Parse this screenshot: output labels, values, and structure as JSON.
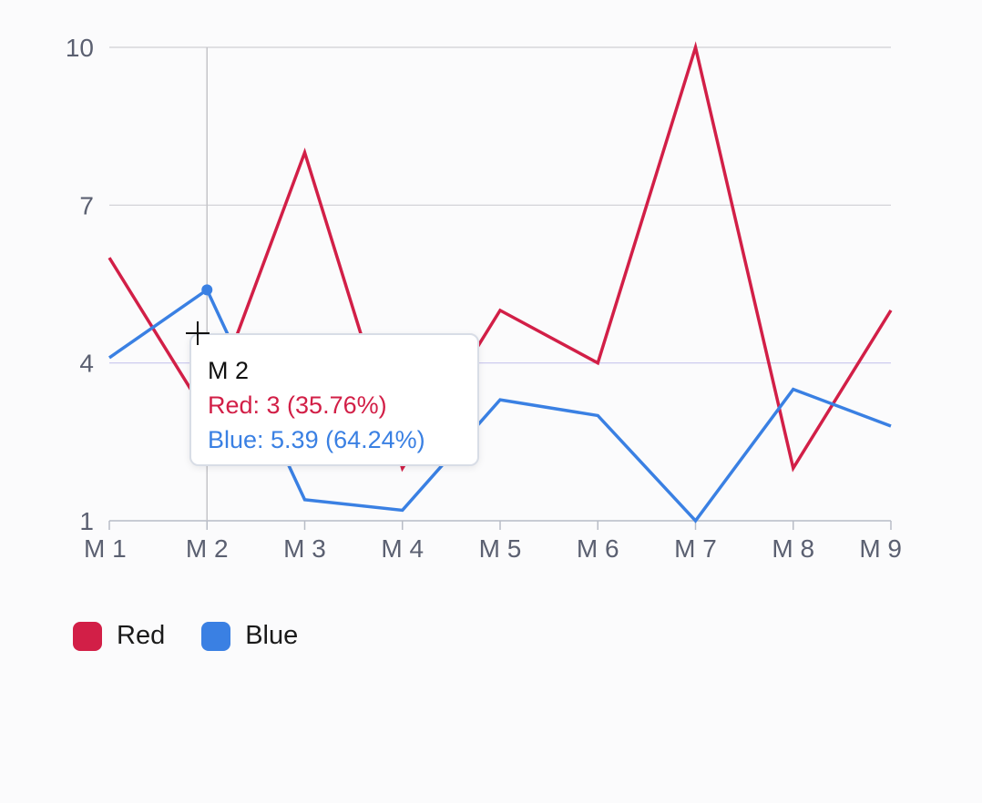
{
  "chart_data": {
    "type": "line",
    "categories": [
      "M 1",
      "M 2",
      "M 3",
      "M 4",
      "M 5",
      "M 6",
      "M 7",
      "M 8",
      "M 9"
    ],
    "series": [
      {
        "name": "Red",
        "color": "#d21f47",
        "values": [
          6,
          3,
          8,
          2,
          5,
          4,
          10,
          2,
          5
        ]
      },
      {
        "name": "Blue",
        "color": "#3a80e3",
        "values": [
          4.1,
          5.39,
          1.4,
          1.2,
          3.3,
          3.0,
          1.0,
          3.5,
          2.8
        ]
      }
    ],
    "ylim": [
      1,
      10
    ],
    "yticks": [
      "10",
      "7",
      "4",
      "1"
    ],
    "ytick_values": [
      10,
      7,
      4,
      1
    ],
    "grid": true,
    "legend_position": "bottom-left",
    "hover_index": 1
  },
  "legend": {
    "items": [
      {
        "label": "Red",
        "color": "#d21f47"
      },
      {
        "label": "Blue",
        "color": "#3a80e3"
      }
    ]
  },
  "tooltip": {
    "title": "M 2",
    "lines": [
      {
        "text": "Red: 3 (35.76%)",
        "color": "#d21f47"
      },
      {
        "text": "Blue: 5.39 (64.24%)",
        "color": "#3a80e3"
      }
    ]
  }
}
